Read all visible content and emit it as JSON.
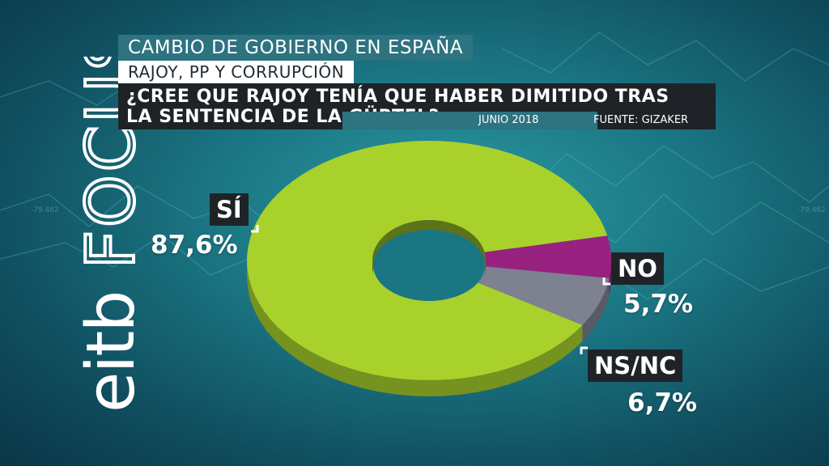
{
  "header": {
    "title": "CAMBIO DE GOBIERNO EN ESPAÑA",
    "subtitle": "RAJOY, PP Y CORRUPCIÓN",
    "question_line1": "¿CREE QUE RAJOY TENÍA QUE  HABER DIMITIDO TRAS",
    "question_line2": "LA SENTENCIA DE LA GÜRTEL?",
    "date": "JUNIO 2018",
    "source": "FUENTE: GIZAKER"
  },
  "logo": {
    "text": "eitbFOCUS",
    "name": "eitb-focus-logo"
  },
  "colors": {
    "si": "#a9d12c",
    "no": "#98217f",
    "nsnc": "#7e8190",
    "accent": "#2d7380",
    "label_bg": "#1f2328"
  },
  "chart_data": {
    "type": "pie",
    "style": "3d-donut",
    "slices": [
      {
        "label": "SÍ",
        "value": 87.6,
        "display": "87,6%",
        "color": "#a9d12c"
      },
      {
        "label": "NO",
        "value": 5.7,
        "display": "5,7%",
        "color": "#98217f"
      },
      {
        "label": "NS/NC",
        "value": 6.7,
        "display": "6,7%",
        "color": "#7e8190"
      }
    ]
  }
}
